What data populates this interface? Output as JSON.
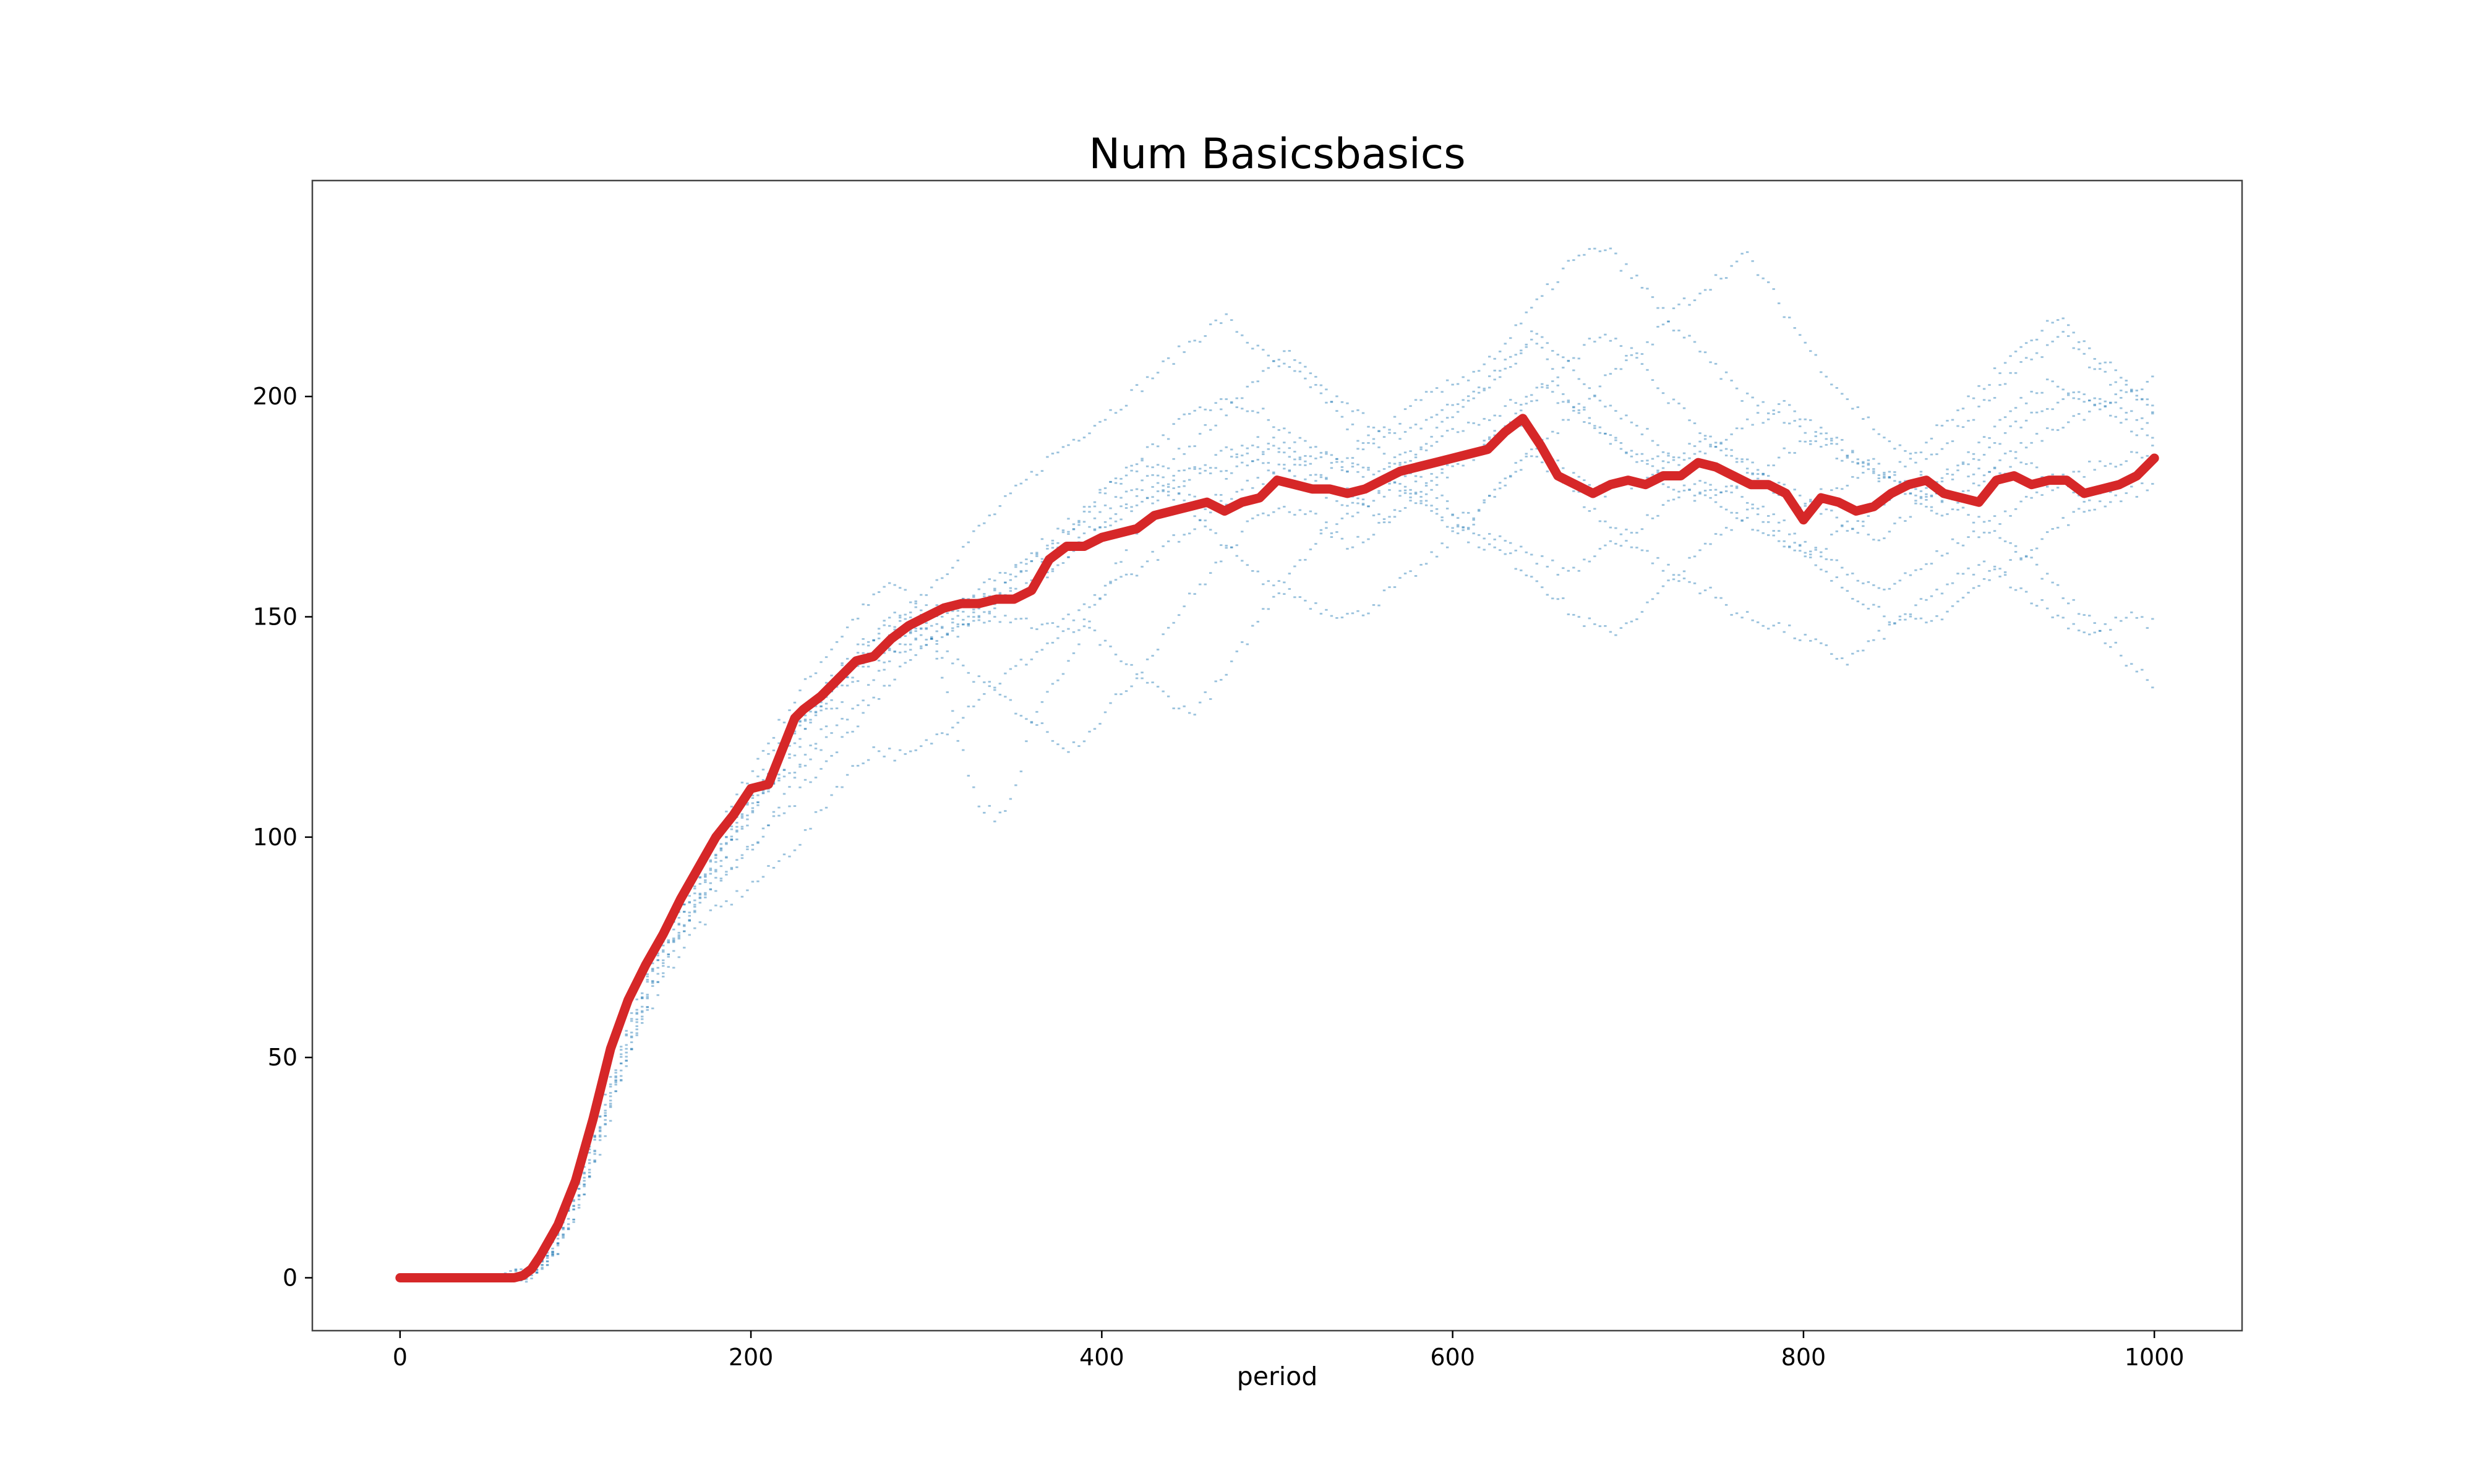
{
  "chart_data": {
    "type": "line",
    "title": "Num Basicsbasics",
    "xlabel": "period",
    "ylabel": "",
    "xlim": [
      -50,
      1050
    ],
    "ylim": [
      -12,
      249
    ],
    "xticks": [
      0,
      200,
      400,
      600,
      800,
      1000
    ],
    "yticks": [
      0,
      50,
      100,
      150,
      200
    ],
    "grid": false,
    "legend": "none",
    "colors": {
      "mean": "#d62728",
      "runs": "#1f77b4",
      "frame": "#444444"
    },
    "series": [
      {
        "role": "mean",
        "x": [
          0,
          50,
          65,
          70,
          75,
          80,
          90,
          100,
          110,
          120,
          130,
          140,
          150,
          160,
          170,
          180,
          190,
          200,
          210,
          220,
          225,
          230,
          240,
          250,
          260,
          270,
          280,
          290,
          300,
          310,
          320,
          330,
          340,
          350,
          360,
          370,
          380,
          390,
          400,
          410,
          420,
          430,
          440,
          450,
          460,
          470,
          480,
          490,
          500,
          510,
          520,
          530,
          540,
          550,
          560,
          570,
          580,
          590,
          600,
          610,
          620,
          630,
          640,
          650,
          660,
          670,
          680,
          690,
          700,
          710,
          720,
          730,
          740,
          750,
          760,
          770,
          780,
          790,
          800,
          810,
          820,
          830,
          840,
          850,
          860,
          870,
          880,
          890,
          900,
          910,
          920,
          930,
          940,
          950,
          960,
          970,
          980,
          990,
          1000
        ],
        "y": [
          0,
          0,
          0,
          0.5,
          2,
          5,
          12,
          22,
          36,
          52,
          63,
          71,
          78,
          86,
          93,
          100,
          105,
          111,
          112,
          122,
          127,
          129,
          132,
          136,
          140,
          141,
          145,
          148,
          150,
          152,
          153,
          153,
          154,
          154,
          156,
          163,
          166,
          166,
          168,
          169,
          170,
          173,
          174,
          175,
          176,
          174,
          176,
          177,
          181,
          180,
          179,
          179,
          178,
          179,
          181,
          183,
          184,
          185,
          186,
          187,
          188,
          192,
          195,
          189,
          182,
          180,
          178,
          180,
          181,
          180,
          182,
          182,
          185,
          184,
          182,
          180,
          180,
          178,
          172,
          177,
          176,
          174,
          175,
          178,
          180,
          181,
          178,
          177,
          176,
          181,
          182,
          180,
          181,
          181,
          178,
          179,
          180,
          182,
          186
        ]
      },
      {
        "role": "run",
        "x": [
          0,
          50,
          70,
          80,
          100,
          120,
          140,
          160,
          180,
          200,
          220,
          240,
          260,
          280,
          300,
          320,
          330,
          340,
          350,
          360,
          380,
          400,
          420,
          440,
          460,
          480,
          500,
          520,
          540,
          560,
          580,
          600,
          620,
          640,
          660,
          680,
          700,
          720,
          740,
          760,
          780,
          800,
          820,
          840,
          860,
          880,
          900,
          920,
          940,
          960,
          980,
          1000
        ],
        "y": [
          0,
          0,
          0,
          3,
          18,
          45,
          68,
          85,
          100,
          115,
          128,
          140,
          150,
          158,
          150,
          120,
          108,
          104,
          110,
          125,
          140,
          155,
          170,
          180,
          175,
          185,
          190,
          182,
          178,
          172,
          180,
          185,
          190,
          195,
          185,
          178,
          180,
          185,
          190,
          188,
          180,
          175,
          180,
          185,
          178,
          172,
          180,
          185,
          182,
          176,
          180,
          185
        ]
      },
      {
        "role": "run",
        "x": [
          0,
          55,
          75,
          90,
          110,
          130,
          150,
          170,
          190,
          210,
          230,
          250,
          270,
          290,
          310,
          330,
          350,
          370,
          390,
          410,
          430,
          450,
          470,
          490,
          510,
          530,
          550,
          570,
          590,
          610,
          630,
          650,
          670,
          690,
          710,
          730,
          750,
          770,
          790,
          810,
          830,
          850,
          870,
          890,
          910,
          930,
          950,
          970,
          1000
        ],
        "y": [
          0,
          0,
          1,
          8,
          30,
          56,
          76,
          90,
          102,
          118,
          126,
          138,
          146,
          152,
          160,
          170,
          178,
          186,
          192,
          198,
          205,
          212,
          218,
          210,
          205,
          200,
          195,
          190,
          196,
          200,
          205,
          215,
          205,
          198,
          192,
          185,
          188,
          194,
          198,
          192,
          186,
          180,
          178,
          183,
          190,
          196,
          200,
          198,
          195
        ]
      },
      {
        "role": "run",
        "x": [
          0,
          60,
          75,
          90,
          110,
          130,
          150,
          170,
          190,
          210,
          230,
          250,
          270,
          290,
          310,
          330,
          350,
          370,
          390,
          410,
          430,
          450,
          470,
          490,
          510,
          530,
          550,
          570,
          590,
          610,
          630,
          650,
          670,
          690,
          710,
          730,
          750,
          770,
          790,
          810,
          830,
          850,
          870,
          890,
          910,
          930,
          950,
          970,
          1000
        ],
        "y": [
          0,
          0,
          1,
          6,
          24,
          50,
          68,
          80,
          86,
          92,
          100,
          112,
          120,
          118,
          124,
          132,
          138,
          144,
          148,
          140,
          134,
          128,
          136,
          150,
          162,
          170,
          176,
          180,
          174,
          168,
          164,
          158,
          150,
          146,
          152,
          160,
          168,
          175,
          168,
          160,
          155,
          150,
          148,
          154,
          160,
          166,
          172,
          176,
          180
        ]
      },
      {
        "role": "run",
        "x": [
          0,
          55,
          70,
          85,
          105,
          125,
          145,
          165,
          185,
          205,
          225,
          245,
          265,
          285,
          305,
          325,
          345,
          365,
          385,
          405,
          425,
          445,
          465,
          485,
          505,
          525,
          545,
          565,
          585,
          605,
          625,
          645,
          665,
          685,
          705,
          725,
          745,
          765,
          785,
          805,
          825,
          845,
          865,
          885,
          905,
          925,
          945,
          965,
          985,
          1000
        ],
        "y": [
          0,
          0,
          1,
          5,
          22,
          48,
          70,
          84,
          96,
          108,
          120,
          132,
          142,
          148,
          146,
          150,
          158,
          166,
          172,
          180,
          186,
          176,
          168,
          160,
          156,
          152,
          150,
          156,
          162,
          170,
          178,
          188,
          180,
          172,
          166,
          160,
          156,
          150,
          148,
          144,
          140,
          146,
          152,
          158,
          162,
          156,
          150,
          146,
          150,
          148
        ]
      },
      {
        "role": "run",
        "x": [
          0,
          50,
          70,
          85,
          105,
          125,
          145,
          165,
          185,
          205,
          225,
          245,
          265,
          285,
          305,
          325,
          345,
          365,
          385,
          405,
          425,
          445,
          465,
          485,
          505,
          525,
          545,
          565,
          585,
          605,
          625,
          645,
          665,
          685,
          705,
          725,
          745,
          765,
          785,
          805,
          825,
          845,
          865,
          885,
          905,
          925,
          945,
          965,
          985,
          1000
        ],
        "y": [
          0,
          0,
          1,
          4,
          20,
          46,
          66,
          82,
          98,
          112,
          124,
          134,
          144,
          150,
          152,
          150,
          154,
          158,
          166,
          172,
          178,
          182,
          184,
          186,
          182,
          178,
          176,
          182,
          190,
          198,
          206,
          214,
          200,
          192,
          186,
          180,
          176,
          172,
          168,
          164,
          170,
          176,
          182,
          176,
          170,
          164,
          156,
          148,
          140,
          135
        ]
      },
      {
        "role": "run",
        "x": [
          0,
          58,
          72,
          88,
          108,
          128,
          148,
          168,
          188,
          208,
          228,
          248,
          268,
          288,
          308,
          328,
          348,
          368,
          388,
          408,
          428,
          448,
          468,
          488,
          508,
          528,
          548,
          568,
          588,
          608,
          628,
          648,
          668,
          688,
          708,
          728,
          748,
          768,
          788,
          808,
          828,
          848,
          868,
          888,
          908,
          928,
          948,
          968,
          988,
          1000
        ],
        "y": [
          0,
          0,
          1,
          6,
          28,
          54,
          74,
          88,
          100,
          110,
          116,
          124,
          134,
          144,
          150,
          156,
          160,
          164,
          170,
          176,
          182,
          188,
          196,
          204,
          210,
          200,
          190,
          184,
          178,
          172,
          180,
          188,
          196,
          204,
          210,
          220,
          226,
          232,
          220,
          208,
          198,
          190,
          184,
          192,
          200,
          208,
          214,
          206,
          200,
          196
        ]
      },
      {
        "role": "run",
        "x": [
          0,
          52,
          68,
          82,
          102,
          122,
          142,
          162,
          182,
          202,
          222,
          242,
          262,
          282,
          302,
          322,
          342,
          362,
          382,
          402,
          422,
          442,
          462,
          482,
          502,
          522,
          542,
          562,
          582,
          602,
          622,
          642,
          662,
          682,
          702,
          722,
          742,
          762,
          782,
          802,
          822,
          842,
          862,
          882,
          902,
          922,
          942,
          962,
          982,
          1000
        ],
        "y": [
          0,
          0,
          1,
          3,
          16,
          42,
          64,
          80,
          94,
          106,
          118,
          130,
          140,
          146,
          144,
          138,
          132,
          126,
          120,
          128,
          138,
          150,
          160,
          170,
          176,
          172,
          166,
          172,
          178,
          184,
          190,
          198,
          205,
          214,
          210,
          200,
          192,
          186,
          180,
          176,
          172,
          168,
          174,
          182,
          190,
          198,
          204,
          200,
          194,
          190
        ]
      },
      {
        "role": "run",
        "x": [
          0,
          56,
          72,
          86,
          106,
          126,
          146,
          166,
          186,
          206,
          226,
          246,
          266,
          286,
          306,
          326,
          346,
          366,
          386,
          406,
          426,
          446,
          466,
          486,
          506,
          526,
          546,
          566,
          586,
          606,
          626,
          646,
          666,
          686,
          706,
          726,
          746,
          766,
          786,
          806,
          826,
          846,
          866,
          886,
          906,
          926,
          946,
          966,
          986,
          1000
        ],
        "y": [
          0,
          0,
          1,
          5,
          24,
          50,
          72,
          86,
          100,
          112,
          124,
          134,
          140,
          142,
          146,
          150,
          154,
          160,
          166,
          172,
          176,
          180,
          186,
          190,
          186,
          182,
          188,
          194,
          200,
          204,
          210,
          220,
          230,
          234,
          226,
          216,
          208,
          200,
          196,
          190,
          186,
          182,
          188,
          196,
          204,
          212,
          218,
          210,
          202,
          198
        ]
      },
      {
        "role": "run",
        "x": [
          0,
          54,
          70,
          84,
          104,
          124,
          144,
          164,
          184,
          204,
          224,
          244,
          264,
          284,
          304,
          324,
          344,
          364,
          384,
          404,
          424,
          444,
          464,
          484,
          504,
          524,
          544,
          564,
          584,
          604,
          624,
          644,
          664,
          684,
          704,
          724,
          744,
          764,
          784,
          804,
          824,
          844,
          864,
          884,
          904,
          924,
          944,
          964,
          984,
          1000
        ],
        "y": [
          0,
          0,
          1,
          4,
          18,
          44,
          66,
          82,
          92,
          100,
          108,
          118,
          128,
          138,
          144,
          148,
          150,
          148,
          150,
          156,
          162,
          168,
          174,
          180,
          184,
          186,
          184,
          180,
          176,
          172,
          168,
          164,
          160,
          164,
          170,
          176,
          180,
          178,
          172,
          166,
          160,
          156,
          160,
          166,
          170,
          176,
          180,
          184,
          186,
          188
        ]
      },
      {
        "role": "run",
        "x": [
          0,
          60,
          76,
          92,
          112,
          132,
          152,
          172,
          192,
          212,
          232,
          252,
          272,
          292,
          312,
          332,
          352,
          372,
          392,
          412,
          432,
          452,
          472,
          492,
          512,
          532,
          552,
          572,
          592,
          612,
          632,
          652,
          672,
          692,
          712,
          732,
          752,
          772,
          792,
          812,
          832,
          852,
          872,
          892,
          912,
          932,
          952,
          972,
          992,
          1000
        ],
        "y": [
          0,
          0,
          1,
          7,
          30,
          56,
          74,
          86,
          94,
          104,
          118,
          132,
          142,
          148,
          152,
          154,
          158,
          166,
          174,
          182,
          190,
          196,
          200,
          196,
          190,
          186,
          182,
          186,
          190,
          194,
          198,
          202,
          196,
          190,
          186,
          182,
          178,
          182,
          188,
          192,
          186,
          180,
          176,
          180,
          186,
          190,
          194,
          198,
          202,
          204
        ]
      }
    ]
  }
}
